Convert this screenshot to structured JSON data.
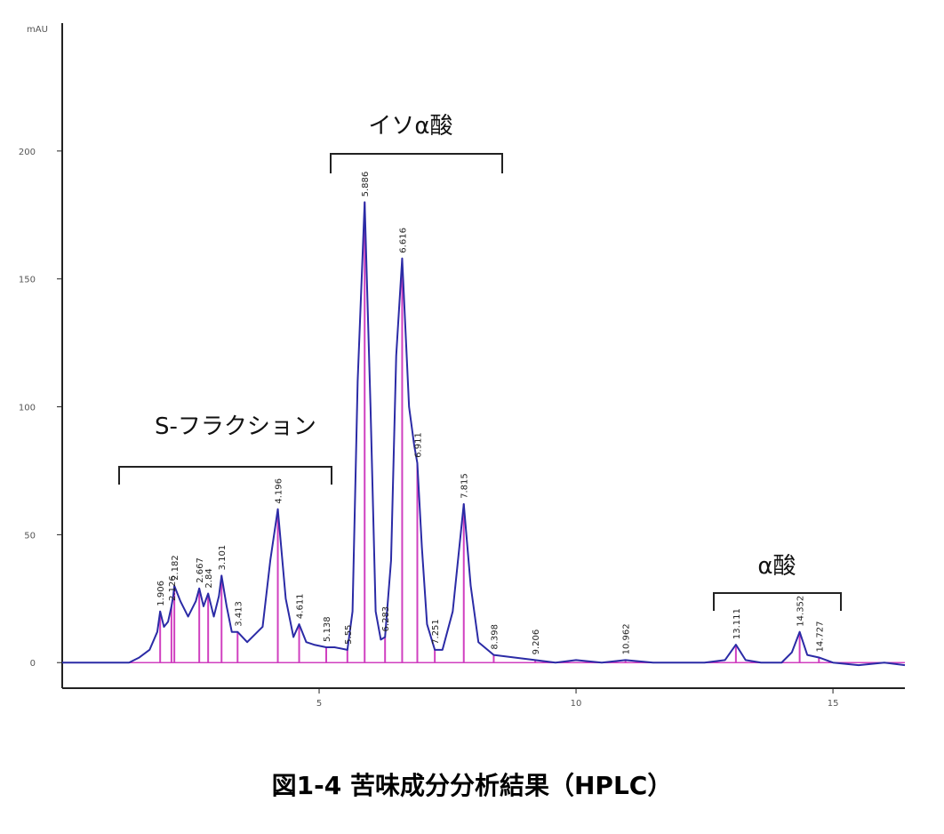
{
  "chart_data": {
    "type": "line",
    "title": "図1-4 苦味成分分析結果（HPLC）",
    "y_label": "mAU",
    "annotations": [
      "S-フラクション",
      "イソα酸",
      "α酸"
    ],
    "x": [
      0,
      1.3,
      1.5,
      1.7,
      1.85,
      1.906,
      1.98,
      2.06,
      2.126,
      2.16,
      2.182,
      2.3,
      2.45,
      2.6,
      2.667,
      2.75,
      2.84,
      2.95,
      3.05,
      3.101,
      3.2,
      3.3,
      3.413,
      3.6,
      3.9,
      4.05,
      4.196,
      4.35,
      4.5,
      4.611,
      4.75,
      4.9,
      5.138,
      5.3,
      5.55,
      5.65,
      5.75,
      5.886,
      6.0,
      6.1,
      6.2,
      6.283,
      6.4,
      6.5,
      6.616,
      6.75,
      6.85,
      6.911,
      7.0,
      7.1,
      7.251,
      7.4,
      7.6,
      7.815,
      7.95,
      8.1,
      8.398,
      8.8,
      9.206,
      9.6,
      10,
      10.5,
      10.962,
      11.5,
      12,
      12.5,
      12.9,
      13.111,
      13.3,
      13.6,
      14,
      14.2,
      14.352,
      14.5,
      14.727,
      15,
      15.5,
      16,
      16.4
    ],
    "series": [
      {
        "color": "#2b2ba6",
        "values": [
          0,
          0,
          2,
          5,
          12,
          20,
          14,
          16,
          22,
          26,
          30,
          24,
          18,
          24,
          29,
          22,
          27,
          18,
          26,
          34,
          22,
          12,
          12,
          8,
          14,
          40,
          60,
          25,
          10,
          15,
          8,
          7,
          6,
          6,
          5,
          20,
          110,
          180,
          100,
          20,
          9,
          10,
          40,
          120,
          158,
          100,
          85,
          78,
          45,
          15,
          5,
          5,
          20,
          62,
          30,
          8,
          3,
          2,
          1,
          0,
          1,
          0,
          1,
          0,
          0,
          0,
          1,
          7,
          1,
          0,
          0,
          4,
          12,
          3,
          2,
          0,
          -1,
          0,
          -1
        ]
      }
    ],
    "peaks": [
      {
        "rt": 1.906,
        "height": 20
      },
      {
        "rt": 2.126,
        "height": 22
      },
      {
        "rt": 2.182,
        "height": 30
      },
      {
        "rt": 2.667,
        "height": 29
      },
      {
        "rt": 2.84,
        "height": 27
      },
      {
        "rt": 3.101,
        "height": 34
      },
      {
        "rt": 3.413,
        "height": 12
      },
      {
        "rt": 4.196,
        "height": 60
      },
      {
        "rt": 4.611,
        "height": 15
      },
      {
        "rt": 5.138,
        "height": 6
      },
      {
        "rt": 5.55,
        "height": 5
      },
      {
        "rt": 5.886,
        "height": 180
      },
      {
        "rt": 6.283,
        "height": 10
      },
      {
        "rt": 6.616,
        "height": 158
      },
      {
        "rt": 6.911,
        "height": 78
      },
      {
        "rt": 7.251,
        "height": 5
      },
      {
        "rt": 7.815,
        "height": 62
      },
      {
        "rt": 8.398,
        "height": 3
      },
      {
        "rt": 9.206,
        "height": 1
      },
      {
        "rt": 10.962,
        "height": 1
      },
      {
        "rt": 13.111,
        "height": 7
      },
      {
        "rt": 14.352,
        "height": 12
      },
      {
        "rt": 14.727,
        "height": 2
      }
    ],
    "peak_color": "#d040c0",
    "xlim": [
      0,
      16.4
    ],
    "ylim": [
      -10,
      250
    ],
    "xticks": [
      5,
      10,
      15
    ],
    "yticks": [
      0,
      50,
      100,
      150,
      200
    ]
  }
}
